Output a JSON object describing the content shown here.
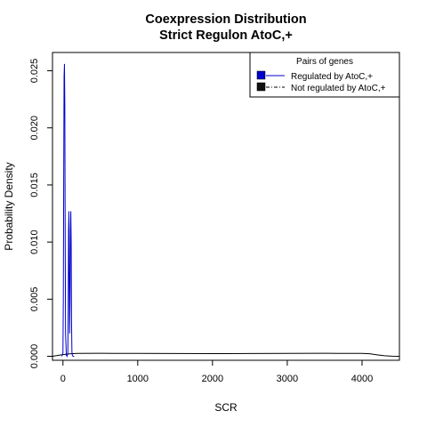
{
  "chart_data": {
    "type": "line",
    "title": "Coexpression Distribution",
    "subtitle": "Strict Regulon AtoC,+",
    "xlabel": "SCR",
    "ylabel": "Probability Density",
    "xlim": [
      -140,
      4500
    ],
    "ylim": [
      -0.00035,
      0.0266
    ],
    "x_ticks": [
      0,
      1000,
      2000,
      3000,
      4000
    ],
    "x_tick_labels": [
      "0",
      "1000",
      "2000",
      "3000",
      "4000"
    ],
    "y_ticks": [
      0.0,
      0.005,
      0.01,
      0.015,
      0.02,
      0.025
    ],
    "y_tick_labels": [
      "0.000",
      "0.005",
      "0.010",
      "0.015",
      "0.020",
      "0.025"
    ],
    "legend": {
      "title": "Pairs of genes",
      "position": "top-right",
      "entries": [
        "Regulated by  AtoC,+",
        "Not regulated by  AtoC,+"
      ]
    },
    "series": [
      {
        "name": "Regulated by  AtoC,+",
        "color": "#0000cc",
        "line_style": "solid",
        "x": [
          -15,
          0,
          5,
          10,
          15,
          20,
          25,
          30,
          35,
          45,
          55,
          65,
          70,
          75,
          80,
          85,
          90,
          95,
          100,
          105,
          110,
          115,
          120,
          125,
          135,
          150
        ],
        "y": [
          0.0,
          0.0003,
          0.005,
          0.015,
          0.0245,
          0.0256,
          0.022,
          0.01,
          0.002,
          0.0001,
          0.0,
          0.0003,
          0.004,
          0.011,
          0.0127,
          0.006,
          0.002,
          0.005,
          0.011,
          0.0127,
          0.01,
          0.003,
          0.0004,
          0.0001,
          0.0,
          0.0
        ]
      },
      {
        "name": "Not regulated by  AtoC,+",
        "color": "#000000",
        "line_style": "solid",
        "x": [
          -140,
          0,
          100,
          200,
          500,
          1000,
          1500,
          2000,
          2500,
          3000,
          3500,
          4000,
          4100,
          4200,
          4300,
          4400,
          4500
        ],
        "y": [
          0.0,
          0.00015,
          0.00022,
          0.00025,
          0.00026,
          0.00025,
          0.00024,
          0.00023,
          0.00024,
          0.00025,
          0.00026,
          0.00025,
          0.00022,
          0.00013,
          5e-05,
          1e-05,
          0.0
        ]
      }
    ]
  }
}
